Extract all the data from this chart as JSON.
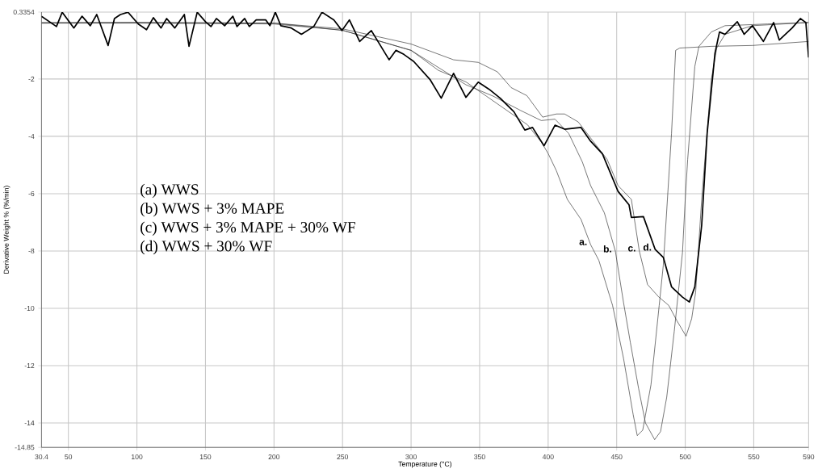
{
  "chart_data": {
    "type": "line",
    "xlabel": "Temperature (°C)",
    "ylabel": "Derivative Weight % (%/min)",
    "xlim": [
      30.4,
      590
    ],
    "ylim": [
      -14.85,
      0.3354
    ],
    "xticks": [
      30.4,
      50,
      100,
      150,
      200,
      250,
      300,
      350,
      400,
      450,
      500,
      550,
      590
    ],
    "yticks": [
      0.3354,
      -2,
      -4,
      -6,
      -8,
      -10,
      -12,
      -14,
      -14.85
    ],
    "grid": true,
    "line_style": "solid",
    "annotations": [
      "(a) WWS",
      "(b) WWS + 3% MAPE",
      "(c) WWS + 3% MAPE + 30% WF",
      "(d) WWS + 30% WF"
    ],
    "series": [
      {
        "name": "a.",
        "color": "#333333",
        "x": [
          30.4,
          100,
          200,
          250,
          300,
          320,
          340,
          355,
          370,
          385,
          395,
          400,
          406,
          414,
          424,
          431,
          437,
          447,
          455,
          462,
          465,
          469,
          475,
          481,
          484,
          487,
          490,
          493,
          496,
          519,
          549,
          590
        ],
        "values": [
          -0.05,
          -0.03,
          -0.05,
          -0.3,
          -1.0,
          -1.7,
          -2.1,
          -2.6,
          -3.1,
          -3.6,
          -4.2,
          -4.6,
          -5.2,
          -6.2,
          -6.9,
          -7.78,
          -8.33,
          -9.9,
          -11.75,
          -13.7,
          -14.44,
          -14.25,
          -12.67,
          -9.9,
          -8.5,
          -6.2,
          -3.9,
          -1.0,
          -0.92,
          -0.86,
          -0.83,
          -0.69
        ]
      },
      {
        "name": "b.",
        "color": "#333333",
        "x": [
          30.4,
          100,
          200,
          250,
          300,
          320,
          340,
          360,
          380,
          395,
          405,
          415,
          425,
          431,
          441,
          449,
          455,
          460,
          466,
          471,
          477.7,
          482,
          486.5,
          492,
          498,
          500,
          501.8,
          507,
          510,
          519,
          529,
          560,
          590
        ],
        "values": [
          -0.05,
          -0.05,
          -0.08,
          -0.3,
          -1.0,
          -1.6,
          -2.2,
          -2.6,
          -3.1,
          -3.45,
          -3.4,
          -3.9,
          -4.9,
          -5.72,
          -6.67,
          -8,
          -9.8,
          -11.2,
          -12.8,
          -14.0,
          -14.58,
          -14.3,
          -13.1,
          -10.8,
          -8.05,
          -6.2,
          -4.8,
          -1.56,
          -0.86,
          -0.36,
          -0.14,
          -0.08,
          -0.03
        ]
      },
      {
        "name": "c.",
        "color": "#333333",
        "x": [
          30.4,
          100,
          200,
          250,
          300,
          331,
          349,
          363,
          373,
          384.5,
          396,
          406,
          412,
          422,
          431,
          443,
          451,
          460.7,
          466.5,
          472.5,
          480.6,
          488,
          494,
          500.6,
          504.7,
          507.6,
          512,
          519,
          523,
          529,
          549,
          590
        ],
        "values": [
          -0.03,
          -0.03,
          -0.05,
          -0.25,
          -0.78,
          -1.33,
          -1.42,
          -1.75,
          -2.3,
          -2.58,
          -3.33,
          -3.22,
          -3.22,
          -3.5,
          -4.06,
          -4.8,
          -5.72,
          -6.2,
          -8,
          -9.17,
          -9.6,
          -9.9,
          -10.44,
          -10.97,
          -10.36,
          -9.44,
          -6.2,
          -2.03,
          -0.92,
          -0.44,
          -0.14,
          -0.03
        ]
      },
      {
        "name": "d.",
        "color": "#000000",
        "x": [
          30.4,
          41.3,
          45.5,
          54,
          60,
          66,
          70.7,
          79,
          83.6,
          88,
          93.5,
          101,
          107,
          112,
          117.6,
          121.7,
          127.6,
          134.6,
          138,
          144,
          150,
          154,
          158,
          164,
          170,
          173,
          178.6,
          182,
          187,
          194,
          197,
          201,
          205,
          212.6,
          220,
          229,
          235,
          243.7,
          249.6,
          255,
          262.5,
          271,
          284,
          289,
          294.7,
          302,
          314,
          322,
          331,
          340,
          349,
          357,
          365,
          375,
          383,
          388.6,
          397,
          405,
          412,
          424,
          431,
          439.6,
          451,
          459,
          460.7,
          469.5,
          478,
          484,
          490,
          498,
          503,
          507,
          512,
          516,
          521.7,
          525,
          529,
          538,
          543,
          549,
          557,
          564.5,
          568.6,
          578,
          584,
          588,
          590
        ],
        "values": [
          0.19,
          -0.17,
          0.33,
          -0.22,
          0.19,
          -0.14,
          0.25,
          -0.83,
          0.11,
          0.25,
          0.33,
          -0.08,
          -0.28,
          0.14,
          -0.22,
          0.11,
          -0.22,
          0.25,
          -0.86,
          0.33,
          0,
          -0.17,
          0.11,
          -0.14,
          0.19,
          -0.17,
          0.11,
          -0.17,
          0.06,
          0.06,
          -0.14,
          0.33,
          -0.14,
          -0.22,
          -0.44,
          -0.17,
          0.33,
          0.06,
          -0.31,
          0.06,
          -0.69,
          -0.31,
          -1.33,
          -1.0,
          -1.14,
          -1.39,
          -2.03,
          -2.67,
          -1.8,
          -2.64,
          -2.11,
          -2.36,
          -2.67,
          -3.14,
          -3.78,
          -3.69,
          -4.33,
          -3.61,
          -3.75,
          -3.69,
          -4.17,
          -4.61,
          -5.92,
          -6.39,
          -6.83,
          -6.8,
          -7.94,
          -8.22,
          -9.25,
          -9.61,
          -9.78,
          -9.25,
          -7.1,
          -3.89,
          -1.1,
          -0.36,
          -0.44,
          0,
          -0.44,
          -0.14,
          -0.69,
          -0.03,
          -0.64,
          -0.22,
          0.11,
          -0.03,
          -1.25
        ]
      }
    ]
  }
}
